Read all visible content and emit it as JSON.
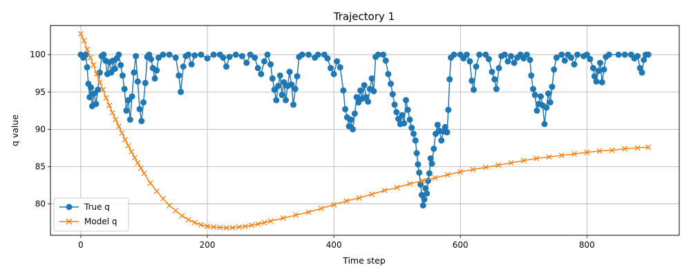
{
  "chart_data": {
    "type": "line",
    "title": "Trajectory 1",
    "xlabel": "Time step",
    "ylabel": "q value",
    "xlim": [
      -48,
      946
    ],
    "ylim": [
      75.8,
      103.9
    ],
    "xticks": [
      0,
      200,
      400,
      600,
      800
    ],
    "yticks": [
      80,
      85,
      90,
      95,
      100
    ],
    "grid": true,
    "legend_position": "lower-left",
    "series": [
      {
        "name": "True q",
        "color": "#1f77b4",
        "marker": "o",
        "points": [
          [
            0,
            100
          ],
          [
            4,
            99.6
          ],
          [
            8,
            100
          ],
          [
            10,
            98.3
          ],
          [
            12,
            96.1
          ],
          [
            14,
            94.3
          ],
          [
            16,
            95.6
          ],
          [
            18,
            93.1
          ],
          [
            21,
            94.8
          ],
          [
            24,
            93.4
          ],
          [
            27,
            95.3
          ],
          [
            30,
            97.6
          ],
          [
            33,
            99.8
          ],
          [
            36,
            100
          ],
          [
            39,
            99.2
          ],
          [
            42,
            97.4
          ],
          [
            45,
            99
          ],
          [
            48,
            97.6
          ],
          [
            51,
            99.2
          ],
          [
            54,
            98.1
          ],
          [
            57,
            99.5
          ],
          [
            60,
            100
          ],
          [
            63,
            98.6
          ],
          [
            66,
            97.2
          ],
          [
            69,
            95.4
          ],
          [
            72,
            92.5
          ],
          [
            75,
            93.9
          ],
          [
            78,
            91.3
          ],
          [
            81,
            94.4
          ],
          [
            84,
            97.6
          ],
          [
            87,
            99.8
          ],
          [
            90,
            96.4
          ],
          [
            93,
            92.7
          ],
          [
            96,
            91.1
          ],
          [
            99,
            93.6
          ],
          [
            102,
            96.2
          ],
          [
            105,
            99.7
          ],
          [
            108,
            100
          ],
          [
            111,
            99.4
          ],
          [
            114,
            98.2
          ],
          [
            117,
            96.8
          ],
          [
            120,
            97.9
          ],
          [
            123,
            99.6
          ],
          [
            130,
            100
          ],
          [
            140,
            100
          ],
          [
            150,
            99.6
          ],
          [
            155,
            97.2
          ],
          [
            158,
            95
          ],
          [
            162,
            98.4
          ],
          [
            166,
            99.8
          ],
          [
            170,
            100
          ],
          [
            175,
            98.7
          ],
          [
            180,
            99.9
          ],
          [
            190,
            100
          ],
          [
            200,
            99.5
          ],
          [
            210,
            100
          ],
          [
            220,
            100
          ],
          [
            225,
            99.6
          ],
          [
            230,
            98.4
          ],
          [
            235,
            99.7
          ],
          [
            245,
            100
          ],
          [
            255,
            99.8
          ],
          [
            262,
            98.9
          ],
          [
            268,
            100
          ],
          [
            275,
            99.6
          ],
          [
            280,
            98.2
          ],
          [
            285,
            97.4
          ],
          [
            290,
            99.1
          ],
          [
            295,
            100
          ],
          [
            300,
            98.7
          ],
          [
            303,
            96.8
          ],
          [
            306,
            95.3
          ],
          [
            309,
            93.9
          ],
          [
            312,
            95.8
          ],
          [
            315,
            97.2
          ],
          [
            318,
            94.6
          ],
          [
            321,
            96.3
          ],
          [
            324,
            93.9
          ],
          [
            327,
            95.8
          ],
          [
            330,
            97.7
          ],
          [
            333,
            96
          ],
          [
            336,
            93.3
          ],
          [
            339,
            95.4
          ],
          [
            342,
            97.1
          ],
          [
            345,
            99.7
          ],
          [
            350,
            100
          ],
          [
            360,
            100
          ],
          [
            370,
            99.6
          ],
          [
            375,
            100
          ],
          [
            385,
            100
          ],
          [
            390,
            99.5
          ],
          [
            395,
            98.2
          ],
          [
            400,
            97.4
          ],
          [
            405,
            99.1
          ],
          [
            410,
            98.3
          ],
          [
            415,
            95.2
          ],
          [
            418,
            92.7
          ],
          [
            421,
            91.6
          ],
          [
            424,
            90.4
          ],
          [
            427,
            91.3
          ],
          [
            430,
            90
          ],
          [
            433,
            92.1
          ],
          [
            436,
            94.3
          ],
          [
            439,
            93.6
          ],
          [
            442,
            95.2
          ],
          [
            445,
            94.1
          ],
          [
            448,
            95.9
          ],
          [
            451,
            94.3
          ],
          [
            454,
            93.7
          ],
          [
            457,
            95.4
          ],
          [
            460,
            96.8
          ],
          [
            463,
            95.1
          ],
          [
            466,
            99.7
          ],
          [
            470,
            100
          ],
          [
            478,
            100
          ],
          [
            482,
            99.2
          ],
          [
            486,
            97.4
          ],
          [
            490,
            96.1
          ],
          [
            493,
            94.7
          ],
          [
            496,
            93.3
          ],
          [
            499,
            92.3
          ],
          [
            502,
            91.4
          ],
          [
            505,
            90.7
          ],
          [
            508,
            91.9
          ],
          [
            511,
            90.8
          ],
          [
            514,
            93.9
          ],
          [
            517,
            92.6
          ],
          [
            520,
            91.3
          ],
          [
            523,
            90.2
          ],
          [
            526,
            89.4
          ],
          [
            529,
            88.5
          ],
          [
            531,
            86.8
          ],
          [
            533,
            85.3
          ],
          [
            535,
            84.2
          ],
          [
            537,
            82.6
          ],
          [
            539,
            81.2
          ],
          [
            541,
            79.8
          ],
          [
            543,
            80.6
          ],
          [
            545,
            82.1
          ],
          [
            547,
            81.4
          ],
          [
            549,
            83.1
          ],
          [
            551,
            84.1
          ],
          [
            553,
            86.1
          ],
          [
            555,
            85.4
          ],
          [
            558,
            87.4
          ],
          [
            561,
            89.4
          ],
          [
            564,
            90.6
          ],
          [
            567,
            89.8
          ],
          [
            570,
            88.5
          ],
          [
            573,
            89.7
          ],
          [
            576,
            90.3
          ],
          [
            579,
            89.6
          ],
          [
            581,
            92.6
          ],
          [
            583,
            96.7
          ],
          [
            585,
            99.6
          ],
          [
            590,
            100
          ],
          [
            600,
            100
          ],
          [
            605,
            99.5
          ],
          [
            610,
            100
          ],
          [
            615,
            99.1
          ],
          [
            618,
            96.5
          ],
          [
            621,
            95.3
          ],
          [
            625,
            98.4
          ],
          [
            630,
            100
          ],
          [
            640,
            100
          ],
          [
            645,
            99.4
          ],
          [
            650,
            97.7
          ],
          [
            654,
            96.7
          ],
          [
            657,
            95.4
          ],
          [
            661,
            98.2
          ],
          [
            665,
            99.8
          ],
          [
            670,
            100
          ],
          [
            675,
            99.1
          ],
          [
            680,
            99.8
          ],
          [
            685,
            98.9
          ],
          [
            690,
            99.6
          ],
          [
            695,
            100
          ],
          [
            700,
            99.5
          ],
          [
            705,
            100
          ],
          [
            710,
            99.3
          ],
          [
            712,
            97.2
          ],
          [
            715,
            95.4
          ],
          [
            718,
            94.6
          ],
          [
            721,
            92.5
          ],
          [
            724,
            93.4
          ],
          [
            727,
            94.4
          ],
          [
            730,
            93.2
          ],
          [
            733,
            90.7
          ],
          [
            736,
            92.9
          ],
          [
            739,
            94.8
          ],
          [
            742,
            93.6
          ],
          [
            745,
            95.7
          ],
          [
            748,
            98
          ],
          [
            752,
            99.6
          ],
          [
            760,
            100
          ],
          [
            765,
            99.2
          ],
          [
            770,
            100
          ],
          [
            775,
            99.6
          ],
          [
            780,
            98.7
          ],
          [
            785,
            100
          ],
          [
            795,
            99.8
          ],
          [
            800,
            100
          ],
          [
            805,
            99.4
          ],
          [
            810,
            98.2
          ],
          [
            812,
            97.1
          ],
          [
            815,
            96.4
          ],
          [
            818,
            97.8
          ],
          [
            821,
            98.9
          ],
          [
            824,
            96.3
          ],
          [
            827,
            98
          ],
          [
            830,
            99.7
          ],
          [
            835,
            100
          ],
          [
            850,
            100
          ],
          [
            860,
            100
          ],
          [
            870,
            100
          ],
          [
            875,
            99.5
          ],
          [
            880,
            99.8
          ],
          [
            884,
            98.2
          ],
          [
            887,
            97.6
          ],
          [
            890,
            99.3
          ],
          [
            893,
            100
          ],
          [
            897,
            100
          ]
        ]
      },
      {
        "name": "Model q",
        "color": "#ff7f0e",
        "marker": "x",
        "points": [
          [
            0,
            102.8
          ],
          [
            5,
            101.9
          ],
          [
            10,
            100.7
          ],
          [
            15,
            99.6
          ],
          [
            20,
            98.6
          ],
          [
            25,
            97.4
          ],
          [
            30,
            96.3
          ],
          [
            35,
            95.3
          ],
          [
            40,
            94.2
          ],
          [
            45,
            93.2
          ],
          [
            50,
            92.2
          ],
          [
            55,
            91.3
          ],
          [
            60,
            90.4
          ],
          [
            65,
            89.5
          ],
          [
            70,
            88.6
          ],
          [
            75,
            87.8
          ],
          [
            80,
            87
          ],
          [
            85,
            86.2
          ],
          [
            90,
            85.5
          ],
          [
            95,
            84.8
          ],
          [
            100,
            84.1
          ],
          [
            110,
            82.8
          ],
          [
            120,
            81.7
          ],
          [
            130,
            80.7
          ],
          [
            140,
            79.8
          ],
          [
            150,
            79.1
          ],
          [
            160,
            78.4
          ],
          [
            170,
            77.9
          ],
          [
            180,
            77.5
          ],
          [
            190,
            77.2
          ],
          [
            200,
            77
          ],
          [
            210,
            76.9
          ],
          [
            220,
            76.85
          ],
          [
            230,
            76.8
          ],
          [
            240,
            76.82
          ],
          [
            250,
            76.9
          ],
          [
            260,
            77
          ],
          [
            270,
            77.15
          ],
          [
            280,
            77.3
          ],
          [
            290,
            77.5
          ],
          [
            300,
            77.7
          ],
          [
            320,
            78.1
          ],
          [
            340,
            78.5
          ],
          [
            360,
            78.9
          ],
          [
            380,
            79.4
          ],
          [
            400,
            79.9
          ],
          [
            420,
            80.4
          ],
          [
            440,
            80.8
          ],
          [
            460,
            81.3
          ],
          [
            480,
            81.8
          ],
          [
            500,
            82.2
          ],
          [
            520,
            82.7
          ],
          [
            540,
            83.1
          ],
          [
            560,
            83.5
          ],
          [
            580,
            83.9
          ],
          [
            600,
            84.3
          ],
          [
            620,
            84.6
          ],
          [
            640,
            84.9
          ],
          [
            660,
            85.2
          ],
          [
            680,
            85.5
          ],
          [
            700,
            85.8
          ],
          [
            720,
            86.1
          ],
          [
            740,
            86.3
          ],
          [
            760,
            86.5
          ],
          [
            780,
            86.7
          ],
          [
            800,
            86.9
          ],
          [
            820,
            87.1
          ],
          [
            840,
            87.2
          ],
          [
            860,
            87.4
          ],
          [
            880,
            87.5
          ],
          [
            897,
            87.6
          ]
        ]
      }
    ]
  }
}
